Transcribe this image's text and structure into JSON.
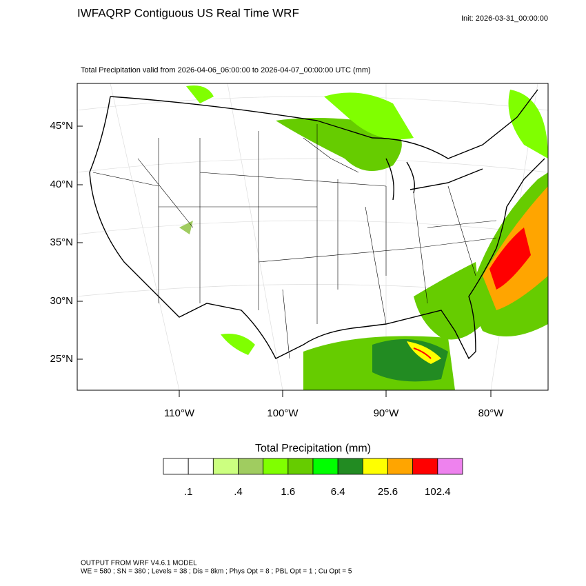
{
  "header": {
    "title": "IWFAQRP Contiguous US Real Time WRF",
    "init": "Init: 2026-03-31_00:00:00",
    "subtitle": "Total Precipitation valid from 2026-04-06_06:00:00 to 2026-04-07_00:00:00 UTC   (mm)"
  },
  "map": {
    "lat_labels": [
      "45°N",
      "40°N",
      "35°N",
      "30°N",
      "25°N"
    ],
    "lon_labels": [
      "110°W",
      "100°W",
      "90°W",
      "80°W"
    ]
  },
  "legend": {
    "title": "Total Precipitation  (mm)",
    "colors": [
      "#ffffff",
      "#ffffff",
      "#ccff80",
      "#a0cc60",
      "#80ff00",
      "#66cc00",
      "#00ff00",
      "#228b22",
      "#ffff00",
      "#ffa500",
      "#ff0000",
      "#ee82ee"
    ],
    "labels": [
      ".1",
      ".4",
      "1.6",
      "6.4",
      "25.6",
      "102.4"
    ]
  },
  "footer": {
    "line1": "OUTPUT FROM WRF V4.6.1 MODEL",
    "line2": "WE = 580 ; SN = 380 ; Levels = 38 ; Dis = 8km ; Phys Opt = 8 ; PBL Opt = 1 ; Cu Opt = 5"
  }
}
